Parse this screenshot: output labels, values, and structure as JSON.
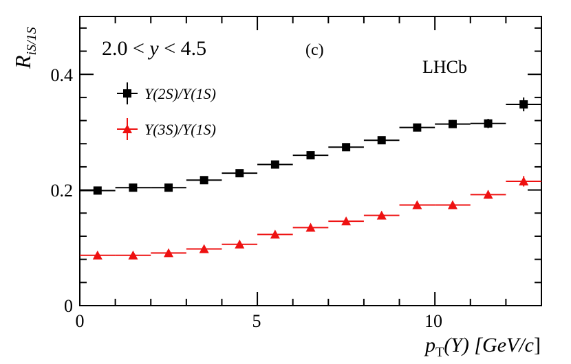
{
  "chart_data": {
    "type": "scatter",
    "title": "",
    "xlabel_main": "p",
    "xlabel_sub": "T",
    "xlabel_rest": "(Υ) [GeV/",
    "xlabel_c": "c",
    "xlabel_close": "]",
    "ylabel_main": "R",
    "ylabel_sub": "iS/1S",
    "xlim": [
      0,
      13
    ],
    "ylim": [
      0,
      0.5
    ],
    "x_ticks": [
      "0",
      "5",
      "10"
    ],
    "y_ticks": [
      "0",
      "0.2",
      "0.4"
    ],
    "annotations": {
      "rapidity_pre": "2.0 < ",
      "rapidity_var": "y",
      "rapidity_post": " < 4.5",
      "panel": "(c)",
      "experiment": "LHCb"
    },
    "series": [
      {
        "name": "Υ(2S)/Υ(1S)",
        "legend_a": "Υ(2",
        "legend_b": "S",
        "legend_c": ")/Υ(1",
        "legend_d": "S",
        "legend_e": ")",
        "color": "#000000",
        "marker": "square",
        "bins": [
          [
            0,
            1
          ],
          [
            1,
            2
          ],
          [
            2,
            3
          ],
          [
            3,
            4
          ],
          [
            4,
            5
          ],
          [
            5,
            6
          ],
          [
            6,
            7
          ],
          [
            7,
            8
          ],
          [
            8,
            9
          ],
          [
            9,
            10
          ],
          [
            10,
            11
          ],
          [
            11,
            12
          ],
          [
            12,
            13
          ]
        ],
        "values": [
          0.199,
          0.204,
          0.204,
          0.217,
          0.229,
          0.244,
          0.26,
          0.274,
          0.286,
          0.308,
          0.314,
          0.315,
          0.348
        ],
        "errors": [
          0.004,
          0.004,
          0.004,
          0.004,
          0.004,
          0.004,
          0.004,
          0.004,
          0.005,
          0.005,
          0.007,
          0.008,
          0.012
        ]
      },
      {
        "name": "Υ(3S)/Υ(1S)",
        "legend_a": "Υ(3",
        "legend_b": "S",
        "legend_c": ")/Υ(1",
        "legend_d": "S",
        "legend_e": ")",
        "color": "#ee1111",
        "marker": "triangle",
        "bins": [
          [
            0,
            1
          ],
          [
            1,
            2
          ],
          [
            2,
            3
          ],
          [
            3,
            4
          ],
          [
            4,
            5
          ],
          [
            5,
            6
          ],
          [
            6,
            7
          ],
          [
            7,
            8
          ],
          [
            8,
            9
          ],
          [
            9,
            10
          ],
          [
            10,
            11
          ],
          [
            11,
            12
          ],
          [
            12,
            13
          ]
        ],
        "values": [
          0.087,
          0.087,
          0.091,
          0.098,
          0.106,
          0.123,
          0.135,
          0.146,
          0.156,
          0.174,
          0.174,
          0.192,
          0.215
        ],
        "errors": [
          0.002,
          0.002,
          0.002,
          0.002,
          0.002,
          0.003,
          0.003,
          0.003,
          0.004,
          0.005,
          0.005,
          0.007,
          0.009
        ]
      }
    ]
  }
}
